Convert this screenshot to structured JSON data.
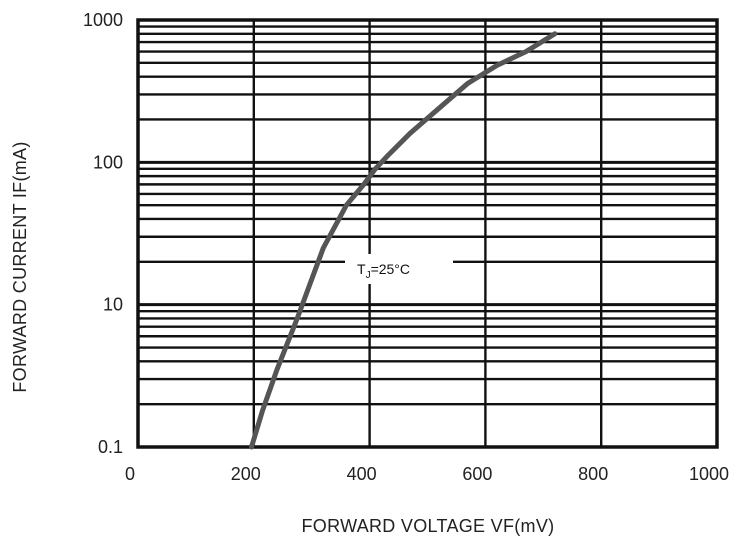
{
  "chart_data": {
    "type": "line",
    "xlabel": "FORWARD VOLTAGE  VF(mV)",
    "ylabel": "FORWARD CURRENT  IF(mA)",
    "xlim": [
      0,
      1000
    ],
    "x_ticks": [
      0,
      200,
      400,
      600,
      800,
      1000
    ],
    "x_tick_labels": [
      "0",
      "200",
      "400",
      "600",
      "800",
      "1000"
    ],
    "y_tick_labels": [
      "0.1",
      "10",
      "100",
      "1000"
    ],
    "y_scale": "log (printed tick labels: 0.1, 10, 100, 1000)",
    "grid": true,
    "annotation": {
      "main": "T",
      "subscript": "J",
      "rest": "=25°C"
    },
    "series": [
      {
        "x": [
          196,
          215,
          240,
          275,
          320,
          360,
          390,
          410,
          430,
          470,
          520,
          570,
          620,
          670,
          720
        ],
        "y": [
          1.0,
          1.8,
          3.5,
          8,
          25,
          50,
          70,
          90,
          110,
          160,
          240,
          360,
          480,
          600,
          800
        ]
      }
    ],
    "line_color": "#555555"
  }
}
